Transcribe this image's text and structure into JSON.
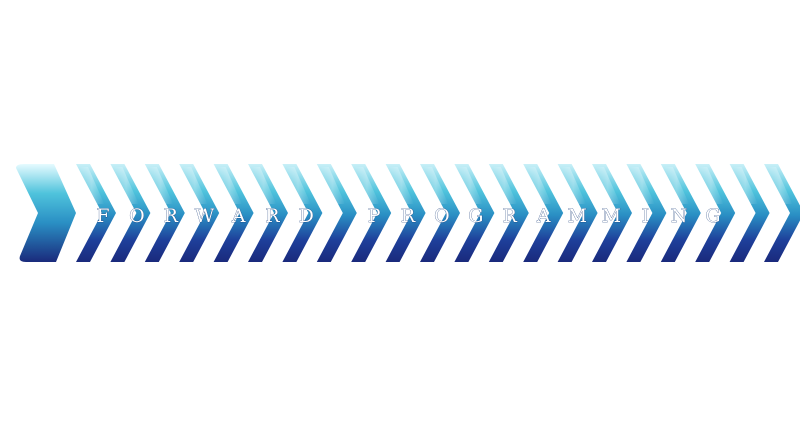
{
  "logo": {
    "chevron_count": 22,
    "letters": [
      "F",
      "O",
      "R",
      "W",
      "A",
      "R",
      "D",
      "",
      "P",
      "R",
      "O",
      "G",
      "R",
      "A",
      "M",
      "M",
      "I",
      "N",
      "G"
    ],
    "colors": {
      "top": "#c9f0f8",
      "upper": "#4fc3dc",
      "middle": "#2a8fc4",
      "lower": "#1e3f9a",
      "bottom": "#1a2a7c",
      "first_chevron_top": "#e6fbff"
    }
  }
}
